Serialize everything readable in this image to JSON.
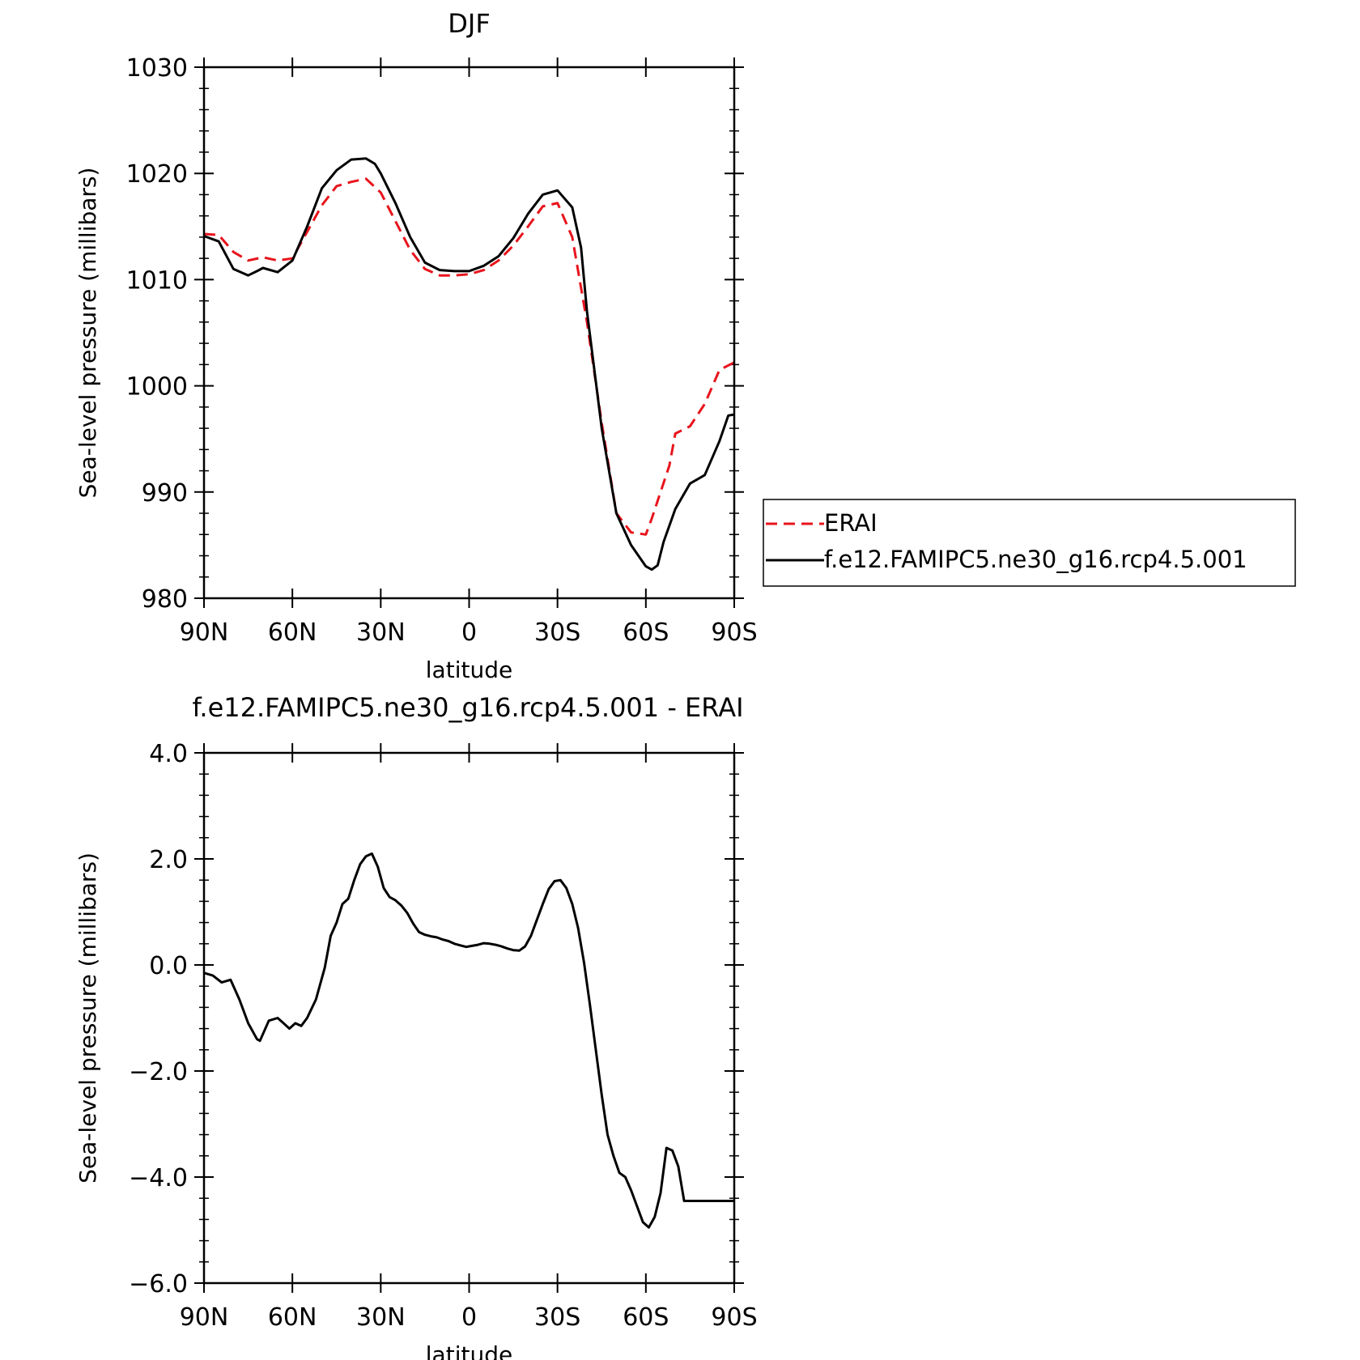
{
  "chart_data": [
    {
      "type": "line",
      "title": "DJF",
      "xlabel": "latitude",
      "ylabel": "Sea-level pressure (millibars)",
      "xlim": [
        90,
        -90
      ],
      "ylim": [
        980,
        1030
      ],
      "yticks": [
        "980",
        "990",
        "1000",
        "1010",
        "1020",
        "1030"
      ],
      "xticks": [
        "90N",
        "60N",
        "30N",
        "0",
        "30S",
        "60S",
        "90S"
      ],
      "legend": {
        "placement": "right",
        "entries": [
          "ERAI",
          "f.e12.FAMIPC5.ne30_g16.rcp4.5.001"
        ]
      },
      "series": [
        {
          "name": "ERAI",
          "color": "#e8141c",
          "dash": "dashed",
          "x": [
            90,
            85,
            80,
            75,
            70,
            65,
            60,
            55,
            50,
            45,
            40,
            35,
            30,
            25,
            20,
            15,
            10,
            5,
            0,
            -5,
            -10,
            -15,
            -20,
            -25,
            -30,
            -35,
            -40,
            -45,
            -50,
            -55,
            -60,
            -62,
            -65,
            -68,
            -70,
            -75,
            -80,
            -85,
            -90
          ],
          "values": [
            1014.3,
            1014.2,
            1012.6,
            1011.8,
            1012.1,
            1011.8,
            1012.0,
            1014.5,
            1017.0,
            1018.8,
            1019.2,
            1019.5,
            1018.2,
            1015.5,
            1012.8,
            1011.0,
            1010.4,
            1010.4,
            1010.5,
            1010.9,
            1011.8,
            1013.2,
            1015.0,
            1016.9,
            1017.2,
            1014.0,
            1006.0,
            996.5,
            988.0,
            986.2,
            986.0,
            987.5,
            990.0,
            992.5,
            995.5,
            996.2,
            998.3,
            1001.5,
            1002.2
          ]
        },
        {
          "name": "f.e12.FAMIPC5.ne30_g16.rcp4.5.001",
          "color": "#000000",
          "dash": "solid",
          "x": [
            90,
            85,
            80,
            75,
            72,
            70,
            65,
            60,
            55,
            50,
            45,
            40,
            35,
            32,
            30,
            25,
            20,
            15,
            10,
            5,
            0,
            -5,
            -10,
            -15,
            -20,
            -25,
            -30,
            -35,
            -38,
            -40,
            -45,
            -50,
            -55,
            -60,
            -62,
            -64,
            -66,
            -70,
            -75,
            -80,
            -85,
            -88,
            -90
          ],
          "values": [
            1014.1,
            1013.6,
            1011.0,
            1010.4,
            1010.8,
            1011.1,
            1010.7,
            1011.8,
            1015.0,
            1018.6,
            1020.3,
            1021.3,
            1021.4,
            1020.9,
            1020.0,
            1017.2,
            1014.0,
            1011.6,
            1010.9,
            1010.8,
            1010.8,
            1011.3,
            1012.2,
            1013.9,
            1016.2,
            1018.0,
            1018.4,
            1016.8,
            1013.0,
            1007.0,
            996.0,
            988.0,
            985.0,
            983.0,
            982.7,
            983.1,
            985.3,
            988.4,
            990.8,
            991.6,
            994.8,
            997.2,
            997.3
          ]
        }
      ]
    },
    {
      "type": "line",
      "title": "f.e12.FAMIPC5.ne30_g16.rcp4.5.001 - ERAI",
      "xlabel": "latitude",
      "ylabel": "Sea-level pressure (millibars)",
      "xlim": [
        90,
        -90
      ],
      "ylim": [
        -6.0,
        4.0
      ],
      "yticks": [
        "−6.0",
        "−4.0",
        "−2.0",
        "0.0",
        "2.0",
        "4.0"
      ],
      "xticks": [
        "90N",
        "60N",
        "30N",
        "0",
        "30S",
        "60S",
        "90S"
      ],
      "series": [
        {
          "color": "#000000",
          "dash": "solid",
          "x": [
            90,
            87,
            84,
            81,
            78,
            75,
            72,
            71,
            68,
            65,
            63,
            61,
            59,
            57,
            55,
            52,
            49,
            47,
            45,
            43,
            41,
            39,
            37,
            35,
            33,
            31,
            29,
            27,
            25,
            23,
            21,
            19,
            17,
            15,
            13,
            11,
            9,
            7,
            5,
            3,
            1,
            -1,
            -3,
            -5,
            -7,
            -9,
            -11,
            -13,
            -15,
            -17,
            -19,
            -21,
            -23,
            -25,
            -27,
            -29,
            -31,
            -33,
            -35,
            -37,
            -39,
            -41,
            -43,
            -45,
            -47,
            -49,
            -51,
            -53,
            -55,
            -57,
            -59,
            -61,
            -63,
            -65,
            -67,
            -69,
            -71,
            -73,
            -75,
            -77,
            -79,
            -81,
            -83,
            -85,
            -87,
            -89,
            -90
          ],
          "values": [
            -0.15,
            -0.2,
            -0.33,
            -0.28,
            -0.65,
            -1.1,
            -1.4,
            -1.43,
            -1.05,
            -1.0,
            -1.1,
            -1.2,
            -1.1,
            -1.15,
            -1.0,
            -0.65,
            -0.05,
            0.55,
            0.8,
            1.15,
            1.25,
            1.6,
            1.9,
            2.05,
            2.1,
            1.85,
            1.45,
            1.28,
            1.22,
            1.12,
            0.98,
            0.78,
            0.62,
            0.57,
            0.54,
            0.52,
            0.48,
            0.45,
            0.4,
            0.37,
            0.34,
            0.36,
            0.38,
            0.41,
            0.4,
            0.38,
            0.35,
            0.31,
            0.28,
            0.27,
            0.35,
            0.55,
            0.85,
            1.15,
            1.43,
            1.58,
            1.6,
            1.45,
            1.15,
            0.7,
            0.05,
            -0.75,
            -1.6,
            -2.45,
            -3.2,
            -3.6,
            -3.92,
            -4.0,
            -4.25,
            -4.55,
            -4.85,
            -4.95,
            -4.75,
            -4.3,
            -3.45,
            -3.5,
            -3.8,
            -4.45,
            -4.45,
            -4.45,
            -4.45,
            -4.45,
            -4.45,
            -4.45,
            -4.45,
            -4.45,
            -4.45
          ]
        }
      ]
    }
  ]
}
